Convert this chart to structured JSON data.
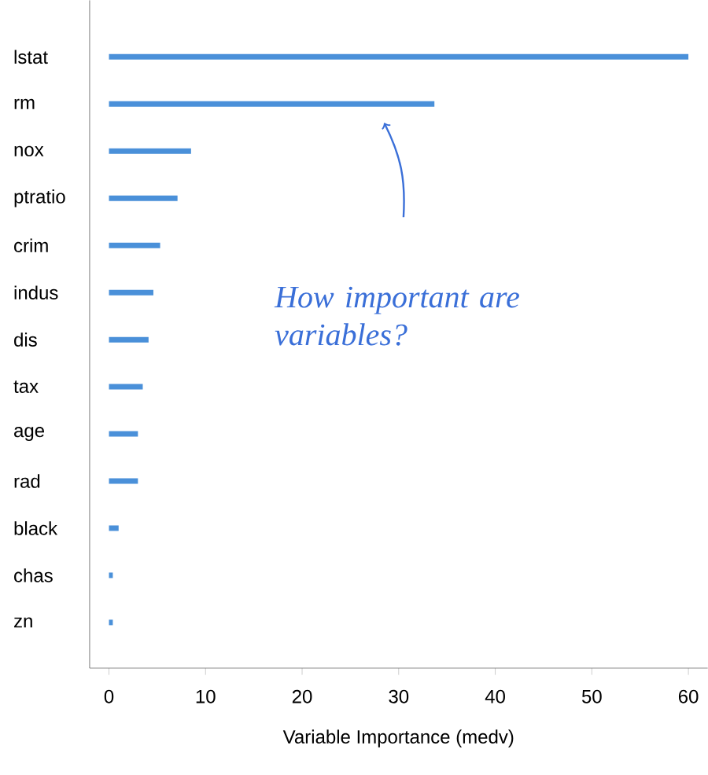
{
  "chart_data": {
    "type": "bar",
    "orientation": "horizontal",
    "xlabel": "Variable Importance (medv)",
    "categories": [
      "lstat",
      "rm",
      "nox",
      "ptratio",
      "crim",
      "indus",
      "dis",
      "tax",
      "age",
      "rad",
      "black",
      "chas",
      "zn"
    ],
    "values": [
      60,
      33.7,
      8.5,
      7.1,
      5.3,
      4.6,
      4.1,
      3.5,
      3.0,
      3.0,
      1.0,
      0.4,
      0.4
    ],
    "color": "#4a90d9",
    "xlim": [
      -2,
      62
    ],
    "xticks": [
      0,
      10,
      20,
      30,
      40,
      50,
      60
    ],
    "annotations": [
      "How important are variables?"
    ],
    "grid": false
  }
}
